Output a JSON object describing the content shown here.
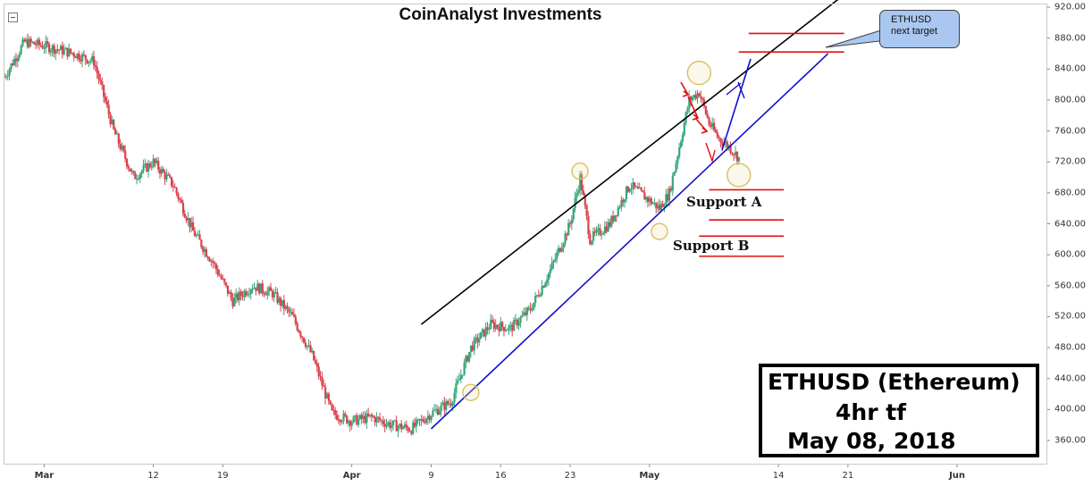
{
  "title": "CoinAnalyst Investments",
  "callout": {
    "line1": "ETHUSD",
    "line2": "next target"
  },
  "support_a_label": "Support A",
  "support_b_label": "Support B",
  "info_box": {
    "line1": "ETHUSD (Ethereum)",
    "line2": "4hr tf",
    "line3": "May 08, 2018"
  },
  "colors": {
    "up": "#3aa57a",
    "down": "#d9424e",
    "channel_top": "#000000",
    "channel_bottom": "#1010c8",
    "level_lines": "#e01010",
    "arrows_down": "#e01010",
    "arrows_up": "#1010c8",
    "circles": "#d8c060"
  },
  "chart_data": {
    "type": "candlestick",
    "title": "CoinAnalyst Investments",
    "x_tick_labels": [
      "Mar",
      "12",
      "19",
      "Apr",
      "9",
      "16",
      "23",
      "May",
      "14",
      "21",
      "Jun"
    ],
    "y_tick_labels": [
      "360.00",
      "400.00",
      "440.00",
      "480.00",
      "520.00",
      "560.00",
      "600.00",
      "640.00",
      "680.00",
      "720.00",
      "760.00",
      "800.00",
      "840.00",
      "880.00",
      "920.00"
    ],
    "ylim": [
      335,
      925
    ],
    "x_axis": {
      "start": "2018-02-25",
      "end": "2018-06-10"
    },
    "grid": false,
    "price_path": [
      [
        "2018-02-25",
        830
      ],
      [
        "2018-02-27",
        875
      ],
      [
        "2018-03-01",
        870
      ],
      [
        "2018-03-04",
        860
      ],
      [
        "2018-03-06",
        850
      ],
      [
        "2018-03-08",
        760
      ],
      [
        "2018-03-10",
        700
      ],
      [
        "2018-03-12",
        720
      ],
      [
        "2018-03-14",
        690
      ],
      [
        "2018-03-16",
        630
      ],
      [
        "2018-03-18",
        590
      ],
      [
        "2018-03-20",
        540
      ],
      [
        "2018-03-22",
        560
      ],
      [
        "2018-03-24",
        550
      ],
      [
        "2018-03-26",
        520
      ],
      [
        "2018-03-28",
        470
      ],
      [
        "2018-03-30",
        395
      ],
      [
        "2018-04-01",
        385
      ],
      [
        "2018-04-03",
        390
      ],
      [
        "2018-04-05",
        380
      ],
      [
        "2018-04-07",
        375
      ],
      [
        "2018-04-09",
        395
      ],
      [
        "2018-04-11",
        410
      ],
      [
        "2018-04-13",
        480
      ],
      [
        "2018-04-15",
        510
      ],
      [
        "2018-04-17",
        505
      ],
      [
        "2018-04-19",
        530
      ],
      [
        "2018-04-21",
        580
      ],
      [
        "2018-04-23",
        640
      ],
      [
        "2018-04-24",
        700
      ],
      [
        "2018-04-25",
        620
      ],
      [
        "2018-04-27",
        640
      ],
      [
        "2018-04-29",
        690
      ],
      [
        "2018-05-01",
        670
      ],
      [
        "2018-05-02",
        660
      ],
      [
        "2018-05-03",
        680
      ],
      [
        "2018-05-04",
        740
      ],
      [
        "2018-05-05",
        800
      ],
      [
        "2018-05-06",
        810
      ],
      [
        "2018-05-07",
        770
      ],
      [
        "2018-05-08",
        750
      ],
      [
        "2018-05-09",
        740
      ],
      [
        "2018-05-10",
        725
      ]
    ],
    "channel_top": {
      "from": [
        "2018-04-08",
        510
      ],
      "to": [
        "2018-05-26",
        990
      ]
    },
    "channel_bottom": {
      "from": [
        "2018-04-09",
        375
      ],
      "to": [
        "2018-05-19",
        860
      ]
    },
    "resistance_levels": [
      {
        "from": "2018-05-11",
        "to": "2018-05-19",
        "value": 886
      },
      {
        "from": "2018-05-10",
        "to": "2018-05-19",
        "value": 862
      }
    ],
    "support_levels": [
      {
        "from": "2018-05-07",
        "to": "2018-05-14",
        "value": 684
      },
      {
        "from": "2018-05-07",
        "to": "2018-05-14",
        "value": 645
      },
      {
        "from": "2018-05-06",
        "to": "2018-05-14",
        "value": 624
      },
      {
        "from": "2018-05-06",
        "to": "2018-05-14",
        "value": 598
      }
    ],
    "marked_circles": [
      [
        "2018-04-13",
        422
      ],
      [
        "2018-04-24",
        708
      ],
      [
        "2018-05-02",
        630
      ],
      [
        "2018-05-06",
        835
      ],
      [
        "2018-05-10",
        703
      ]
    ]
  }
}
